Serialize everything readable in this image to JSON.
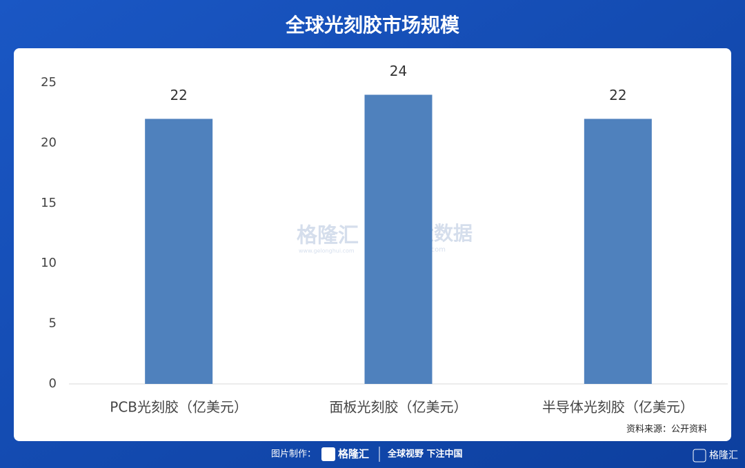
{
  "chart_data": {
    "type": "bar",
    "title": "全球光刻胶市场规模",
    "categories": [
      "PCB光刻胶（亿美元）",
      "面板光刻胶（亿美元）",
      "半导体光刻胶（亿美元）"
    ],
    "values": [
      22,
      24,
      22
    ],
    "color": "#4f81bd",
    "ylim": [
      0,
      25
    ],
    "yticks": [
      0,
      5,
      10,
      15,
      20,
      25
    ],
    "grid": false,
    "source": "资料来源：公开资料"
  },
  "watermark": {
    "brand": "格隆汇",
    "brand_url": "www.gelonghui.com",
    "data": "勾股大数据",
    "data_url": "www.gogudata.com"
  },
  "footer": {
    "made_by": "图片制作：",
    "brand": "格隆汇",
    "slogan": "全球视野 下注中国",
    "corner": "格隆汇"
  }
}
